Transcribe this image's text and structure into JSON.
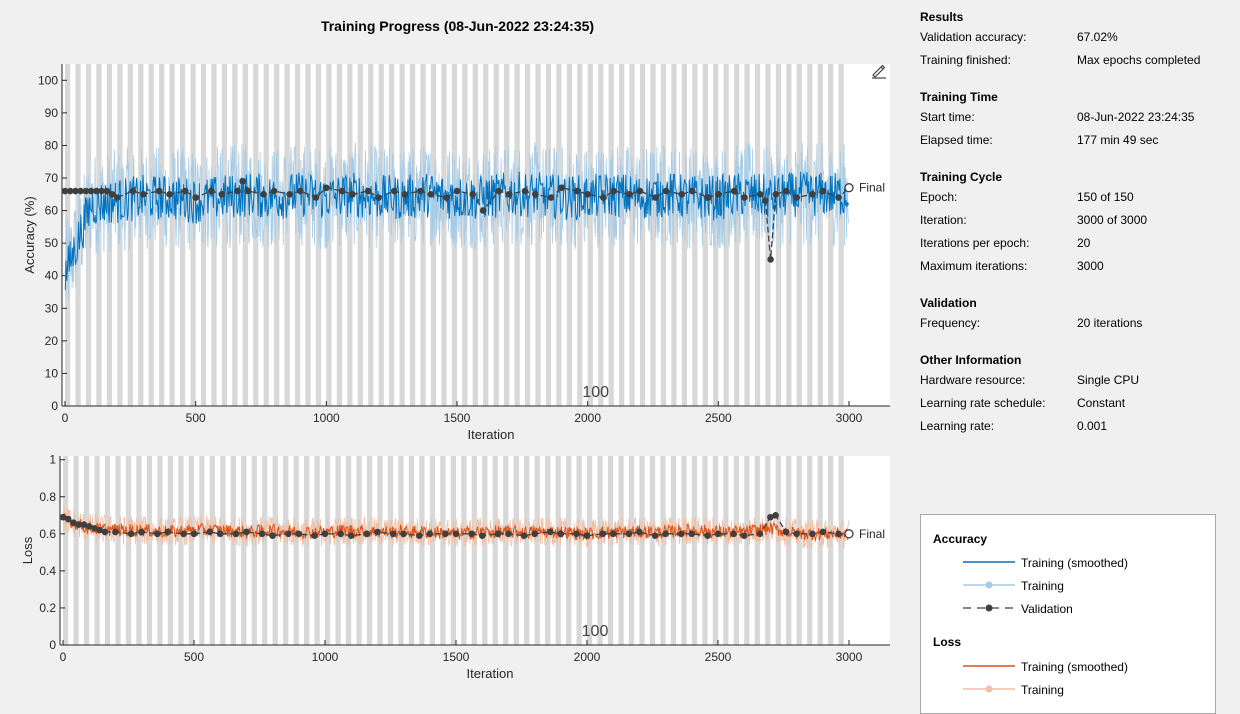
{
  "window_title": "Training Progress (08-Jun-2022 23:24:35)",
  "icons": {
    "edit": "edit-plot-icon"
  },
  "info": {
    "sections": [
      {
        "title": "Results",
        "rows": [
          {
            "label": "Validation accuracy:",
            "value": "67.02%"
          },
          {
            "label": "Training finished:",
            "value": "Max epochs completed"
          }
        ]
      },
      {
        "title": "Training Time",
        "rows": [
          {
            "label": "Start time:",
            "value": "08-Jun-2022 23:24:35"
          },
          {
            "label": "Elapsed time:",
            "value": "177 min 49 sec"
          }
        ]
      },
      {
        "title": "Training Cycle",
        "rows": [
          {
            "label": "Epoch:",
            "value": "150 of 150"
          },
          {
            "label": "Iteration:",
            "value": "3000 of 3000"
          },
          {
            "label": "Iterations per epoch:",
            "value": "20"
          },
          {
            "label": "Maximum iterations:",
            "value": "3000"
          }
        ]
      },
      {
        "title": "Validation",
        "rows": [
          {
            "label": "Frequency:",
            "value": "20 iterations"
          }
        ]
      },
      {
        "title": "Other Information",
        "rows": [
          {
            "label": "Hardware resource:",
            "value": "Single CPU"
          },
          {
            "label": "Learning rate schedule:",
            "value": "Constant"
          },
          {
            "label": "Learning rate:",
            "value": "0.001"
          }
        ]
      }
    ]
  },
  "legend": {
    "accuracy_title": "Accuracy",
    "loss_title": "Loss",
    "items": {
      "acc_smoothed": "Training (smoothed)",
      "acc_training": "Training",
      "acc_validation": "Validation",
      "loss_smoothed": "Training (smoothed)",
      "loss_training": "Training"
    }
  },
  "colors": {
    "acc_smoothed": "#0072bd",
    "acc_training": "#a6cbe6",
    "loss_smoothed": "#d95319",
    "loss_training": "#f0bfa5",
    "validation": "#3f3f3f",
    "epoch_band": "#d8d8d8"
  },
  "chart_data": [
    {
      "type": "line",
      "xlabel": "Iteration",
      "ylabel": "Accuracy (%)",
      "xlim": [
        0,
        3000
      ],
      "ylim": [
        0,
        105
      ],
      "xticks": [
        0,
        500,
        1000,
        1500,
        2000,
        2500,
        3000
      ],
      "yticks": [
        0,
        10,
        20,
        30,
        40,
        50,
        60,
        70,
        80,
        90,
        100
      ],
      "grid": false,
      "epoch_marker_label": "100",
      "final_label": "Final",
      "final_value": 67.02,
      "epochs": 150,
      "iterations_per_epoch": 20,
      "series": [
        {
          "name": "Training (smoothed)",
          "x": [
            0,
            100,
            200,
            300,
            400,
            500,
            600,
            700,
            800,
            900,
            1000,
            1100,
            1200,
            1300,
            1400,
            1500,
            1600,
            1700,
            1800,
            1900,
            2000,
            2100,
            2200,
            2300,
            2400,
            2500,
            2600,
            2700,
            2800,
            2900,
            3000
          ],
          "y": [
            40,
            62,
            63,
            64,
            64,
            63,
            64,
            65,
            64,
            65,
            64,
            65,
            64,
            64,
            65,
            64,
            64,
            65,
            65,
            64,
            64,
            65,
            64,
            65,
            64,
            64,
            65,
            64,
            65,
            65,
            65
          ],
          "noise": 7
        },
        {
          "name": "Training",
          "x": [
            0,
            100,
            200,
            300,
            400,
            500,
            600,
            700,
            800,
            900,
            1000,
            1100,
            1200,
            1300,
            1400,
            1500,
            1600,
            1700,
            1800,
            1900,
            2000,
            2100,
            2200,
            2300,
            2400,
            2500,
            2600,
            2700,
            2800,
            2900,
            3000
          ],
          "y": [
            40,
            62,
            63,
            64,
            64,
            63,
            64,
            65,
            64,
            65,
            64,
            65,
            64,
            64,
            65,
            64,
            64,
            65,
            65,
            64,
            64,
            65,
            64,
            65,
            64,
            64,
            65,
            64,
            65,
            65,
            65
          ],
          "noise": 16
        },
        {
          "name": "Validation",
          "x": [
            0,
            20,
            40,
            60,
            80,
            100,
            120,
            140,
            160,
            180,
            200,
            260,
            300,
            360,
            400,
            460,
            500,
            560,
            600,
            660,
            680,
            700,
            760,
            800,
            860,
            900,
            960,
            1000,
            1060,
            1100,
            1160,
            1200,
            1260,
            1300,
            1360,
            1400,
            1460,
            1500,
            1560,
            1600,
            1660,
            1700,
            1760,
            1800,
            1860,
            1900,
            1960,
            2000,
            2060,
            2100,
            2160,
            2200,
            2260,
            2300,
            2360,
            2400,
            2460,
            2500,
            2560,
            2600,
            2660,
            2680,
            2700,
            2720,
            2760,
            2800,
            2860,
            2900,
            2960,
            3000
          ],
          "y": [
            66,
            66,
            66,
            66,
            66,
            66,
            66,
            66,
            66,
            65,
            64,
            66,
            65,
            66,
            65,
            66,
            64,
            66,
            65,
            66,
            69,
            66,
            65,
            66,
            65,
            66,
            64,
            67,
            66,
            65,
            66,
            64,
            66,
            65,
            66,
            65,
            64,
            66,
            65,
            60,
            66,
            65,
            66,
            65,
            64,
            67,
            66,
            65,
            64,
            66,
            65,
            66,
            64,
            66,
            65,
            66,
            64,
            65,
            66,
            64,
            65,
            63,
            45,
            65,
            66,
            64,
            65,
            66,
            64,
            67.02
          ]
        }
      ]
    },
    {
      "type": "line",
      "xlabel": "Iteration",
      "ylabel": "Loss",
      "xlim": [
        0,
        3000
      ],
      "ylim": [
        0,
        1.02
      ],
      "xticks": [
        0,
        500,
        1000,
        1500,
        2000,
        2500,
        3000
      ],
      "yticks": [
        0,
        0.2,
        0.4,
        0.6,
        0.8,
        1
      ],
      "ytick_labels": [
        "0",
        "0.2",
        "0.4",
        "0.6",
        "0.8",
        "1"
      ],
      "grid": false,
      "epoch_marker_label": "100",
      "final_label": "Final",
      "final_value": 0.6,
      "series": [
        {
          "name": "Training (smoothed)",
          "x": [
            0,
            100,
            200,
            300,
            400,
            500,
            600,
            700,
            800,
            900,
            1000,
            1100,
            1200,
            1300,
            1400,
            1500,
            1600,
            1700,
            1800,
            1900,
            2000,
            2100,
            2200,
            2300,
            2400,
            2500,
            2600,
            2700,
            2800,
            2900,
            3000
          ],
          "y": [
            0.68,
            0.63,
            0.62,
            0.62,
            0.61,
            0.62,
            0.62,
            0.61,
            0.62,
            0.61,
            0.61,
            0.62,
            0.61,
            0.61,
            0.61,
            0.6,
            0.61,
            0.61,
            0.61,
            0.61,
            0.6,
            0.61,
            0.61,
            0.61,
            0.62,
            0.61,
            0.61,
            0.63,
            0.6,
            0.6,
            0.6
          ],
          "noise": 0.035
        },
        {
          "name": "Training",
          "x": [
            0,
            100,
            200,
            300,
            400,
            500,
            600,
            700,
            800,
            900,
            1000,
            1100,
            1200,
            1300,
            1400,
            1500,
            1600,
            1700,
            1800,
            1900,
            2000,
            2100,
            2200,
            2300,
            2400,
            2500,
            2600,
            2700,
            2800,
            2900,
            3000
          ],
          "y": [
            0.68,
            0.63,
            0.62,
            0.62,
            0.61,
            0.62,
            0.62,
            0.61,
            0.62,
            0.61,
            0.61,
            0.62,
            0.61,
            0.61,
            0.61,
            0.6,
            0.61,
            0.61,
            0.61,
            0.61,
            0.6,
            0.61,
            0.61,
            0.61,
            0.62,
            0.61,
            0.61,
            0.63,
            0.6,
            0.6,
            0.6
          ],
          "noise": 0.08
        },
        {
          "name": "Validation",
          "x": [
            0,
            20,
            40,
            60,
            80,
            100,
            120,
            140,
            160,
            200,
            260,
            300,
            360,
            400,
            460,
            500,
            560,
            600,
            660,
            700,
            760,
            800,
            860,
            900,
            960,
            1000,
            1060,
            1100,
            1160,
            1200,
            1260,
            1300,
            1360,
            1400,
            1460,
            1500,
            1560,
            1600,
            1660,
            1700,
            1760,
            1800,
            1860,
            1900,
            1960,
            2000,
            2060,
            2100,
            2160,
            2200,
            2260,
            2300,
            2360,
            2400,
            2460,
            2500,
            2560,
            2600,
            2660,
            2700,
            2720,
            2760,
            2800,
            2860,
            2900,
            2960,
            3000
          ],
          "y": [
            0.69,
            0.68,
            0.66,
            0.65,
            0.65,
            0.64,
            0.63,
            0.62,
            0.61,
            0.61,
            0.6,
            0.61,
            0.6,
            0.61,
            0.6,
            0.6,
            0.61,
            0.6,
            0.6,
            0.61,
            0.6,
            0.59,
            0.6,
            0.6,
            0.59,
            0.6,
            0.6,
            0.59,
            0.6,
            0.61,
            0.6,
            0.6,
            0.59,
            0.6,
            0.6,
            0.6,
            0.6,
            0.59,
            0.6,
            0.6,
            0.59,
            0.6,
            0.61,
            0.6,
            0.6,
            0.59,
            0.6,
            0.6,
            0.6,
            0.61,
            0.59,
            0.6,
            0.6,
            0.6,
            0.59,
            0.6,
            0.6,
            0.59,
            0.6,
            0.69,
            0.7,
            0.61,
            0.6,
            0.6,
            0.61,
            0.6,
            0.6
          ]
        }
      ]
    }
  ]
}
